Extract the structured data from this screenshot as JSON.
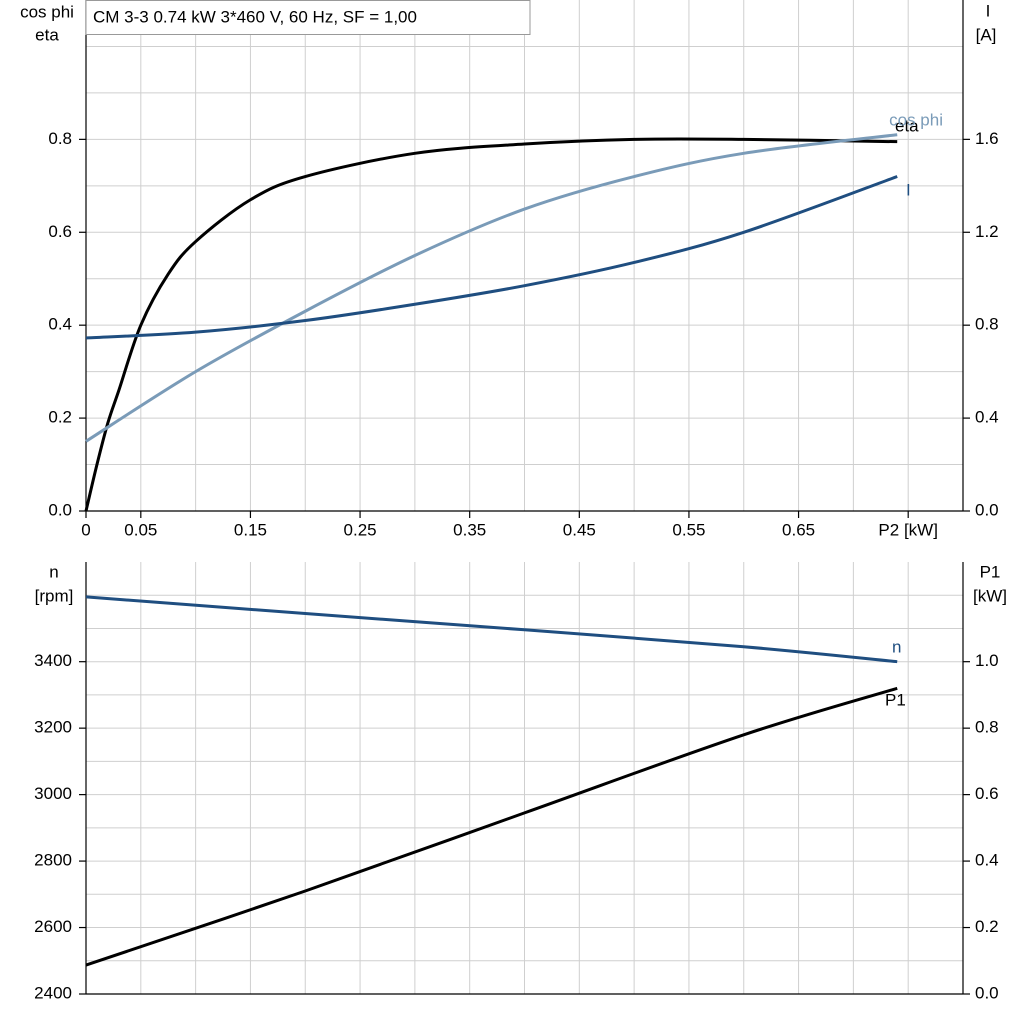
{
  "chart_data": [
    {
      "type": "line",
      "title": "CM 3-3   0.74 kW   3*460 V, 60 Hz, SF = 1,00",
      "ylabel_lines": [
        "cos phi",
        "eta"
      ],
      "y2label_lines": [
        "I",
        "[A]"
      ],
      "xlim": [
        0,
        0.8
      ],
      "xticks": [
        0,
        0.05,
        0.15,
        0.25,
        0.35,
        0.45,
        0.55,
        0.65,
        {
          "value": 0.75,
          "label": "P2 [kW]"
        }
      ],
      "x_minor_grid": [
        0.1,
        0.2,
        0.3,
        0.4,
        0.5,
        0.6,
        0.7
      ],
      "ylim": [
        0,
        1.1
      ],
      "yticks": [
        {
          "value": 0,
          "label": "0.0"
        },
        0.2,
        0.4,
        0.6,
        0.8
      ],
      "y_minor_grid": [
        0.1,
        0.3,
        0.5,
        0.7,
        0.9,
        1.0
      ],
      "y2lim": [
        0,
        2.2
      ],
      "y2ticks": [
        {
          "value": 0,
          "label": "0.0"
        },
        0.4,
        0.8,
        1.2,
        1.6
      ],
      "grid": true,
      "series": [
        {
          "name": "eta",
          "color": "#000000",
          "x": [
            0,
            0.01,
            0.02,
            0.03,
            0.05,
            0.075,
            0.1,
            0.15,
            0.2,
            0.3,
            0.4,
            0.5,
            0.6,
            0.74
          ],
          "values": [
            0,
            0.1,
            0.19,
            0.26,
            0.4,
            0.51,
            0.58,
            0.67,
            0.72,
            0.77,
            0.79,
            0.8,
            0.8,
            0.795
          ]
        },
        {
          "name": "cos phi",
          "color": "#7a9bb8",
          "x": [
            0,
            0.1,
            0.2,
            0.3,
            0.4,
            0.5,
            0.6,
            0.74
          ],
          "values": [
            0.15,
            0.3,
            0.43,
            0.55,
            0.65,
            0.72,
            0.77,
            0.81
          ]
        },
        {
          "name": "I",
          "color": "#1f4e80",
          "axis": "y2",
          "x": [
            0,
            0.1,
            0.2,
            0.3,
            0.4,
            0.5,
            0.6,
            0.74
          ],
          "values": [
            0.745,
            0.77,
            0.82,
            0.89,
            0.97,
            1.07,
            1.2,
            1.44
          ]
        }
      ]
    },
    {
      "type": "line",
      "ylabel_lines": [
        "n",
        "[rpm]"
      ],
      "y2label_lines": [
        "P1",
        "[kW]"
      ],
      "xlim": [
        0,
        0.8
      ],
      "x_minor_grid": [
        0.05,
        0.1,
        0.15,
        0.2,
        0.25,
        0.3,
        0.35,
        0.4,
        0.45,
        0.5,
        0.55,
        0.6,
        0.65,
        0.7,
        0.75
      ],
      "ylim": [
        2400,
        3700
      ],
      "yticks": [
        2400,
        2600,
        2800,
        3000,
        3200,
        3400
      ],
      "y_minor_grid": [
        2500,
        2700,
        2900,
        3100,
        3300,
        3500,
        3600
      ],
      "y2lim": [
        0,
        1.3
      ],
      "y2ticks": [
        {
          "value": 0,
          "label": "0.0"
        },
        0.2,
        0.4,
        0.6,
        0.8,
        {
          "value": 1,
          "label": "1.0"
        }
      ],
      "grid": true,
      "series": [
        {
          "name": "n",
          "color": "#1f4e80",
          "x": [
            0,
            0.2,
            0.4,
            0.6,
            0.74
          ],
          "values": [
            3595,
            3545,
            3496,
            3445,
            3400
          ]
        },
        {
          "name": "P1",
          "color": "#000000",
          "axis": "y2",
          "x": [
            0,
            0.2,
            0.4,
            0.6,
            0.74
          ],
          "values": [
            0.087,
            0.31,
            0.545,
            0.78,
            0.92
          ]
        }
      ]
    }
  ]
}
